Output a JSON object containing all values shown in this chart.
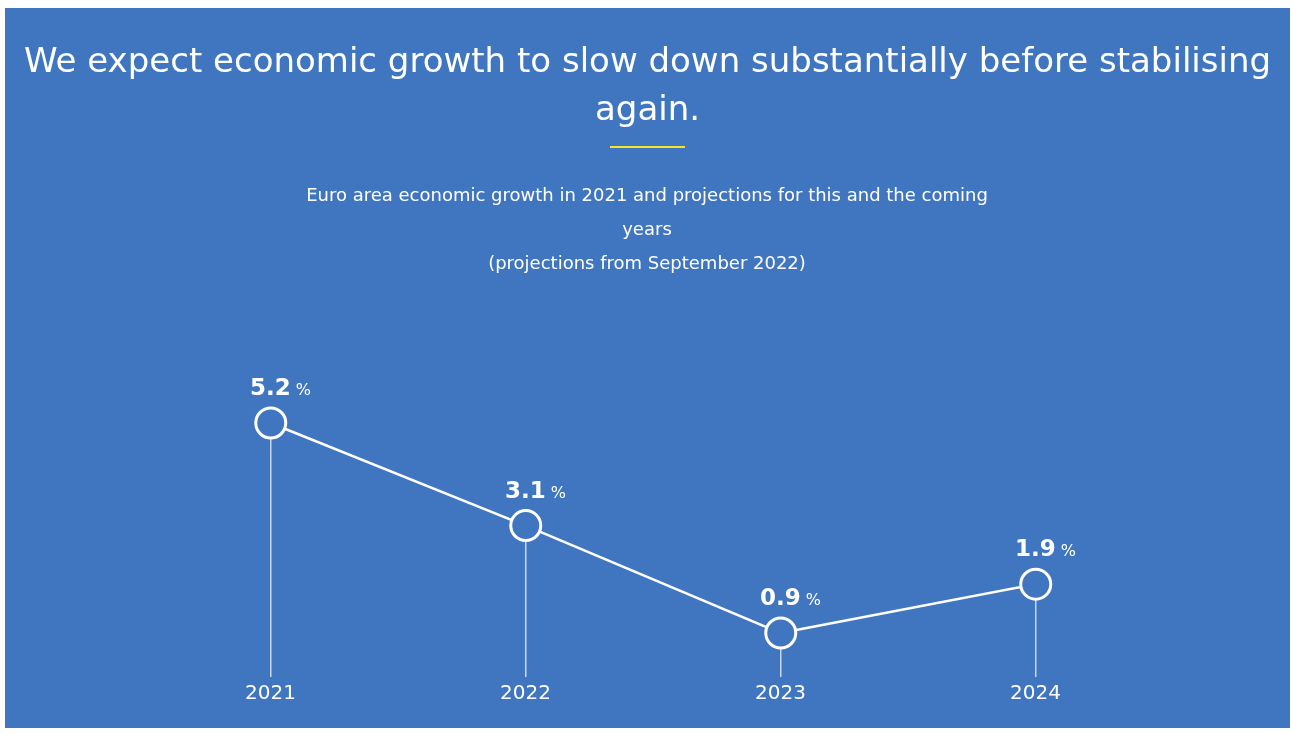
{
  "chart_data": {
    "type": "line",
    "title": "We expect economic growth to slow down substantially before stabilising again.",
    "subtitle": "Euro area economic growth in 2021 and projections for this and the coming years\n(projections from September 2022)",
    "categories": [
      "2021",
      "2022",
      "2023",
      "2024"
    ],
    "series": [
      {
        "color": "#ffffff",
        "marker": "none",
        "values": [
          5.2,
          3.1,
          0.9,
          1.9
        ],
        "value_labels": [
          "5.2 %",
          "3.1 %",
          "0.9 %",
          "1.9 %"
        ]
      },
      {
        "type": "lollipop",
        "color": "#ffffff",
        "marker": "circle",
        "values": [
          5.2,
          3.1,
          0.9,
          1.9
        ]
      }
    ]
  }
}
